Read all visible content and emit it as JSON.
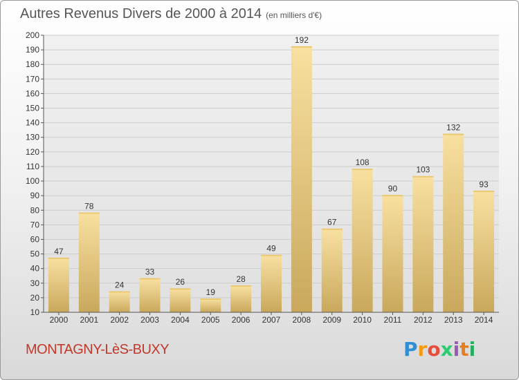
{
  "title": "Autres Revenus Divers de 2000 à 2014",
  "subtitle": "(en milliers d'€)",
  "location": "MONTAGNY-LèS-BUXY",
  "logo": {
    "letters": [
      "P",
      "r",
      "o",
      "x",
      "i",
      "t",
      "i"
    ],
    "colors": [
      "#2e8fd6",
      "#f39c12",
      "#e74c3c",
      "#2ecc71",
      "#9b59b6",
      "#e67e22",
      "#27ae60"
    ]
  },
  "colors": {
    "bar_top": "#f8e0a0",
    "bar_bottom": "#c9a85c",
    "grid": "#cccccc",
    "plot_bg": "#e6e6e6"
  },
  "chart_data": {
    "type": "bar",
    "categories": [
      "2000",
      "2001",
      "2002",
      "2003",
      "2004",
      "2005",
      "2006",
      "2007",
      "2008",
      "2009",
      "2010",
      "2011",
      "2012",
      "2013",
      "2014"
    ],
    "values": [
      47,
      78,
      24,
      33,
      26,
      19,
      28,
      49,
      192,
      67,
      108,
      90,
      103,
      132,
      93
    ],
    "ylim": [
      10,
      200
    ],
    "yticks": [
      10,
      20,
      30,
      40,
      50,
      60,
      70,
      80,
      90,
      100,
      110,
      120,
      130,
      140,
      150,
      160,
      170,
      180,
      190,
      200
    ],
    "grid": true,
    "data_labels": true
  }
}
